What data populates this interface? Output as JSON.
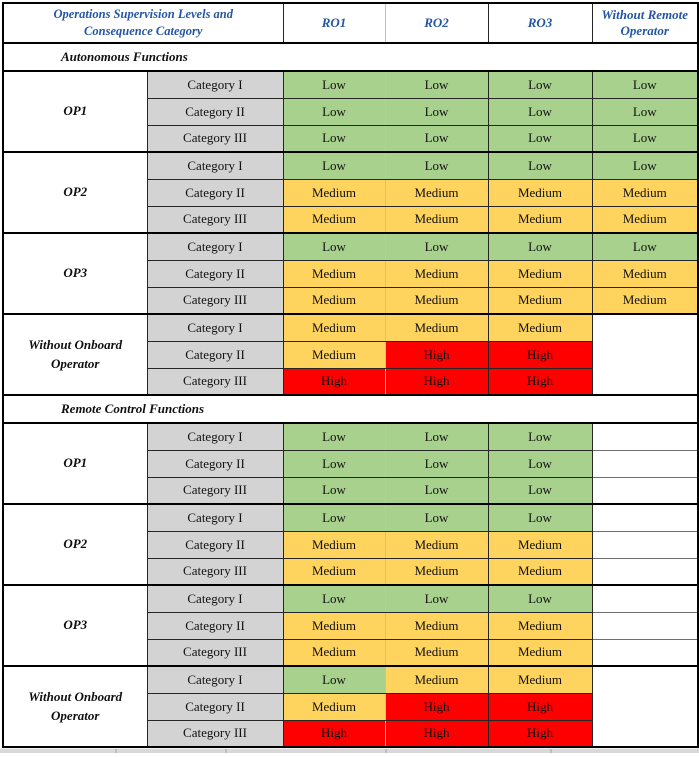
{
  "colors": {
    "header_text_blue": "#2456a4",
    "low_green": "#a9d18e",
    "medium_yellow": "#ffd45e",
    "high_red": "#fe0000",
    "category_gray": "#d3d3d3",
    "grid_black": "#000000",
    "bottom_strip_gray": "#d9d9d9"
  },
  "header": {
    "title": "Operations Supervision Levels and Consequence Category",
    "title_line1": "Operations Supervision Levels and",
    "title_line2": "Consequence Category",
    "columns": [
      "RO1",
      "RO2",
      "RO3",
      "Without Remote Operator"
    ]
  },
  "sections": [
    {
      "title": "Autonomous Functions",
      "groups": [
        {
          "label": "OP1",
          "merged_empty_last_column": false,
          "rows": [
            {
              "category": "Category I",
              "values": [
                "Low",
                "Low",
                "Low",
                "Low"
              ]
            },
            {
              "category": "Category II",
              "values": [
                "Low",
                "Low",
                "Low",
                "Low"
              ]
            },
            {
              "category": "Category III",
              "values": [
                "Low",
                "Low",
                "Low",
                "Low"
              ]
            }
          ]
        },
        {
          "label": "OP2",
          "merged_empty_last_column": false,
          "rows": [
            {
              "category": "Category I",
              "values": [
                "Low",
                "Low",
                "Low",
                "Low"
              ]
            },
            {
              "category": "Category II",
              "values": [
                "Medium",
                "Medium",
                "Medium",
                "Medium"
              ]
            },
            {
              "category": "Category III",
              "values": [
                "Medium",
                "Medium",
                "Medium",
                "Medium"
              ]
            }
          ]
        },
        {
          "label": "OP3",
          "merged_empty_last_column": false,
          "rows": [
            {
              "category": "Category I",
              "values": [
                "Low",
                "Low",
                "Low",
                "Low"
              ]
            },
            {
              "category": "Category II",
              "values": [
                "Medium",
                "Medium",
                "Medium",
                "Medium"
              ]
            },
            {
              "category": "Category III",
              "values": [
                "Medium",
                "Medium",
                "Medium",
                "Medium"
              ]
            }
          ]
        },
        {
          "label": "Without Onboard Operator",
          "merged_empty_last_column": true,
          "rows": [
            {
              "category": "Category I",
              "values": [
                "Medium",
                "Medium",
                "Medium",
                ""
              ]
            },
            {
              "category": "Category II",
              "values": [
                "Medium",
                "High",
                "High",
                ""
              ]
            },
            {
              "category": "Category III",
              "values": [
                "High",
                "High",
                "High",
                ""
              ]
            }
          ]
        }
      ]
    },
    {
      "title": "Remote Control Functions",
      "groups": [
        {
          "label": "OP1",
          "merged_empty_last_column": false,
          "rows": [
            {
              "category": "Category I",
              "values": [
                "Low",
                "Low",
                "Low",
                ""
              ]
            },
            {
              "category": "Category II",
              "values": [
                "Low",
                "Low",
                "Low",
                ""
              ]
            },
            {
              "category": "Category III",
              "values": [
                "Low",
                "Low",
                "Low",
                ""
              ]
            }
          ]
        },
        {
          "label": "OP2",
          "merged_empty_last_column": false,
          "rows": [
            {
              "category": "Category I",
              "values": [
                "Low",
                "Low",
                "Low",
                ""
              ]
            },
            {
              "category": "Category II",
              "values": [
                "Medium",
                "Medium",
                "Medium",
                ""
              ]
            },
            {
              "category": "Category III",
              "values": [
                "Medium",
                "Medium",
                "Medium",
                ""
              ]
            }
          ]
        },
        {
          "label": "OP3",
          "merged_empty_last_column": false,
          "rows": [
            {
              "category": "Category I",
              "values": [
                "Low",
                "Low",
                "Low",
                ""
              ]
            },
            {
              "category": "Category II",
              "values": [
                "Medium",
                "Medium",
                "Medium",
                ""
              ]
            },
            {
              "category": "Category III",
              "values": [
                "Medium",
                "Medium",
                "Medium",
                ""
              ]
            }
          ]
        },
        {
          "label": "Without Onboard Operator",
          "merged_empty_last_column": true,
          "rows": [
            {
              "category": "Category I",
              "values": [
                "Low",
                "Medium",
                "Medium",
                ""
              ]
            },
            {
              "category": "Category II",
              "values": [
                "Medium",
                "High",
                "High",
                ""
              ]
            },
            {
              "category": "Category III",
              "values": [
                "High",
                "High",
                "High",
                ""
              ]
            }
          ]
        }
      ]
    }
  ]
}
